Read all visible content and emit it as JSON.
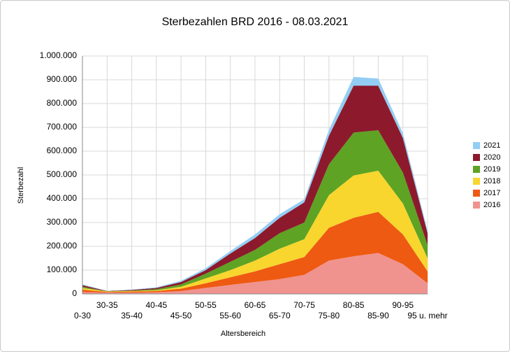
{
  "chart_data": {
    "type": "stacked_area",
    "title": "Sterbezahlen BRD 2016 - 08.03.2021",
    "x_label": "Altersbereich",
    "y_label": "Sterbezahl",
    "categories": [
      "0-30",
      "30-35",
      "35-40",
      "40-45",
      "45-50",
      "50-55",
      "55-60",
      "60-65",
      "65-70",
      "70-75",
      "75-80",
      "80-85",
      "85-90",
      "90-95",
      "95 u. mehr"
    ],
    "series": [
      {
        "name": "2016",
        "color": "#f0938f",
        "values": [
          8000,
          5000,
          5000,
          7000,
          12000,
          25000,
          38000,
          50000,
          62000,
          80000,
          140000,
          158000,
          172000,
          125000,
          45000
        ]
      },
      {
        "name": "2017",
        "color": "#ee5a12",
        "values": [
          10000,
          3000,
          5000,
          5000,
          10000,
          20000,
          32000,
          45000,
          63000,
          75000,
          138000,
          162000,
          173000,
          125000,
          50000
        ]
      },
      {
        "name": "2018",
        "color": "#f8d62e",
        "values": [
          7000,
          2000,
          2000,
          3000,
          8000,
          20000,
          30000,
          45000,
          65000,
          75000,
          137000,
          178000,
          173000,
          130000,
          55000
        ]
      },
      {
        "name": "2019",
        "color": "#5ea324",
        "values": [
          5000,
          1000,
          2000,
          5000,
          10000,
          20000,
          35000,
          45000,
          65000,
          70000,
          130000,
          180000,
          170000,
          130000,
          55000
        ]
      },
      {
        "name": "2020",
        "color": "#8c1a2c",
        "values": [
          7000,
          1000,
          3000,
          5000,
          10000,
          15000,
          35000,
          50000,
          65000,
          85000,
          120000,
          197000,
          187000,
          145000,
          50000
        ]
      },
      {
        "name": "2021",
        "color": "#94cdf3",
        "values": [
          3000,
          1000,
          1000,
          3000,
          5000,
          8000,
          10000,
          15000,
          15000,
          13000,
          25000,
          37000,
          30000,
          20000,
          10000
        ]
      }
    ],
    "ylim": [
      0,
      1000000
    ],
    "yticks": [
      0,
      {
        "value": 100000,
        "label": "100.000"
      },
      {
        "value": 200000,
        "label": "200.000"
      },
      {
        "value": 300000,
        "label": "300.000"
      },
      {
        "value": 400000,
        "label": "400.000"
      },
      {
        "value": 500000,
        "label": "500.000"
      },
      {
        "value": 600000,
        "label": "600.000"
      },
      {
        "value": 700000,
        "label": "700.000"
      },
      {
        "value": 800000,
        "label": "800.000"
      },
      {
        "value": 900000,
        "label": "900.000"
      },
      {
        "value": 1000000,
        "label": "1.000.000"
      }
    ],
    "grid": true,
    "legend": "right"
  }
}
